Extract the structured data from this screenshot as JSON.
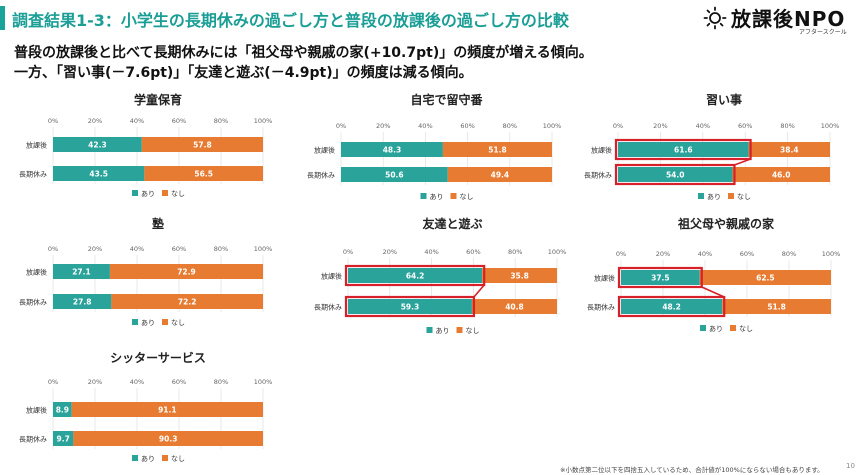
{
  "header": {
    "title": "調査結果1-3：小学生の長期休みの過ごし方と普段の放課後の過ごし方の比較",
    "logo_text": "放課後NPO",
    "logo_sub": "アフタースクール",
    "lead_line1": "普段の放課後と比べて長期休みには「祖父母や親戚の家(+10.7pt)」の頻度が増える傾向。",
    "lead_line2": "一方、「習い事(－7.6pt)」「友達と遊ぶ(－4.9pt)」の頻度は減る傾向。"
  },
  "footnote": "※小数点第二位以下を四捨五入しているため、合計値が100%にならない場合もあります。",
  "page_number": "10",
  "colors": {
    "accent": "#1aa39a",
    "ari": "#2aa39b",
    "nashi": "#e67b31",
    "highlight": "#d7212a"
  },
  "chart_data": [
    {
      "type": "bar",
      "orientation": "horizontal",
      "stacked": true,
      "title": "学童保育",
      "categories": [
        "放課後",
        "長期休み"
      ],
      "series": [
        {
          "name": "あり",
          "values": [
            42.3,
            43.5
          ]
        },
        {
          "name": "なし",
          "values": [
            57.8,
            56.5
          ]
        }
      ],
      "xticks": [
        "0%",
        "20%",
        "40%",
        "60%",
        "80%",
        "100%"
      ],
      "xlim": [
        0,
        100
      ],
      "highlight_ari": false
    },
    {
      "type": "bar",
      "orientation": "horizontal",
      "stacked": true,
      "title": "自宅で留守番",
      "categories": [
        "放課後",
        "長期休み"
      ],
      "series": [
        {
          "name": "あり",
          "values": [
            48.3,
            50.6
          ]
        },
        {
          "name": "なし",
          "values": [
            51.8,
            49.4
          ]
        }
      ],
      "xticks": [
        "0%",
        "20%",
        "40%",
        "60%",
        "80%",
        "100%"
      ],
      "xlim": [
        0,
        100
      ],
      "highlight_ari": false
    },
    {
      "type": "bar",
      "orientation": "horizontal",
      "stacked": true,
      "title": "習い事",
      "categories": [
        "放課後",
        "長期休み"
      ],
      "series": [
        {
          "name": "あり",
          "values": [
            61.6,
            54.0
          ]
        },
        {
          "name": "なし",
          "values": [
            38.4,
            46.0
          ]
        }
      ],
      "xticks": [
        "0%",
        "20%",
        "40%",
        "60%",
        "80%",
        "100%"
      ],
      "xlim": [
        0,
        100
      ],
      "highlight_ari": true
    },
    {
      "type": "bar",
      "orientation": "horizontal",
      "stacked": true,
      "title": "塾",
      "categories": [
        "放課後",
        "長期休み"
      ],
      "series": [
        {
          "name": "あり",
          "values": [
            27.1,
            27.8
          ]
        },
        {
          "name": "なし",
          "values": [
            72.9,
            72.2
          ]
        }
      ],
      "xticks": [
        "0%",
        "20%",
        "40%",
        "60%",
        "80%",
        "100%"
      ],
      "xlim": [
        0,
        100
      ],
      "highlight_ari": false
    },
    {
      "type": "bar",
      "orientation": "horizontal",
      "stacked": true,
      "title": "友達と遊ぶ",
      "categories": [
        "放課後",
        "長期休み"
      ],
      "series": [
        {
          "name": "あり",
          "values": [
            64.2,
            59.3
          ]
        },
        {
          "name": "なし",
          "values": [
            35.8,
            40.8
          ]
        }
      ],
      "xticks": [
        "0%",
        "20%",
        "40%",
        "60%",
        "80%",
        "100%"
      ],
      "xlim": [
        0,
        100
      ],
      "highlight_ari": true
    },
    {
      "type": "bar",
      "orientation": "horizontal",
      "stacked": true,
      "title": "祖父母や親戚の家",
      "categories": [
        "放課後",
        "長期休み"
      ],
      "series": [
        {
          "name": "あり",
          "values": [
            37.5,
            48.2
          ]
        },
        {
          "name": "なし",
          "values": [
            62.5,
            51.8
          ]
        }
      ],
      "xticks": [
        "0%",
        "20%",
        "40%",
        "60%",
        "80%",
        "100%"
      ],
      "xlim": [
        0,
        100
      ],
      "highlight_ari": true
    },
    {
      "type": "bar",
      "orientation": "horizontal",
      "stacked": true,
      "title": "シッターサービス",
      "categories": [
        "放課後",
        "長期休み"
      ],
      "series": [
        {
          "name": "あり",
          "values": [
            8.9,
            9.7
          ]
        },
        {
          "name": "なし",
          "values": [
            91.1,
            90.3
          ]
        }
      ],
      "xticks": [
        "0%",
        "20%",
        "40%",
        "60%",
        "80%",
        "100%"
      ],
      "xlim": [
        0,
        100
      ],
      "highlight_ari": false
    }
  ]
}
